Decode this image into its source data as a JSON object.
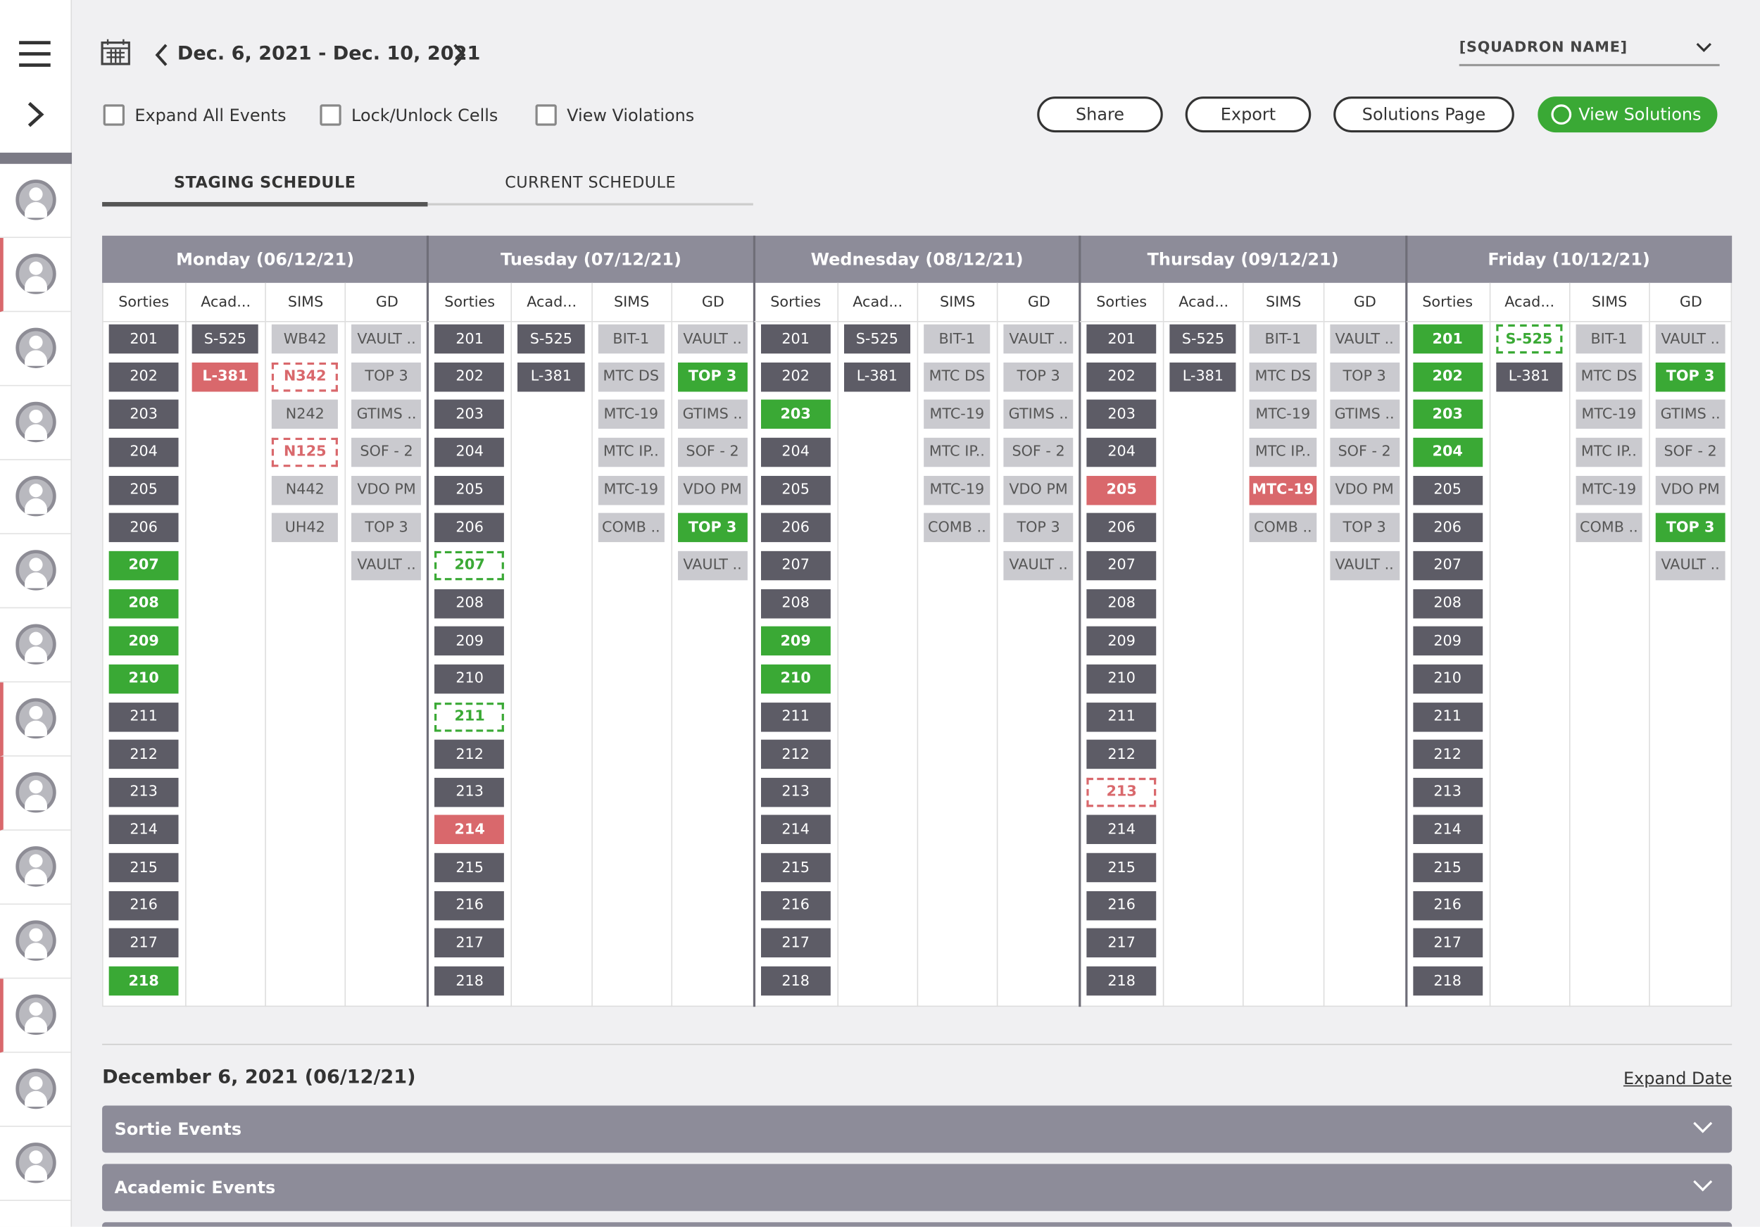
{
  "header": {
    "date_range": "Dec. 6, 2021 - Dec. 10, 2021",
    "squadron": "[SQUADRON NAME]"
  },
  "options": [
    "Expand All Events",
    "Lock/Unlock Cells",
    "View Violations"
  ],
  "buttons": [
    "Share",
    "Export",
    "Solutions Page",
    "View Solutions"
  ],
  "tabs": {
    "labels": [
      "STAGING SCHEDULE",
      "CURRENT SCHEDULE"
    ],
    "active": 0
  },
  "sidebar": {
    "flagged": [
      false,
      true,
      false,
      false,
      false,
      false,
      false,
      true,
      true,
      false,
      false,
      true,
      false,
      false
    ]
  },
  "days": [
    {
      "title": "Monday (06/12/21)",
      "columns": [
        {
          "header": "Sorties",
          "kind": "dark",
          "cells": [
            "201",
            "202",
            "203",
            "204",
            "205",
            "206",
            "207",
            "208",
            "209",
            "210",
            "211",
            "212",
            "213",
            "214",
            "215",
            "216",
            "217",
            "218"
          ],
          "status": [
            null,
            null,
            null,
            null,
            null,
            null,
            "green",
            "green",
            "green",
            "green",
            null,
            null,
            null,
            null,
            null,
            null,
            null,
            "green"
          ]
        },
        {
          "header": "Acad...",
          "kind": "dark",
          "cells": [
            "S-525",
            "L-381"
          ],
          "status": [
            null,
            "red"
          ]
        },
        {
          "header": "SIMS",
          "kind": "light",
          "cells": [
            "WB42",
            "N342",
            "N242",
            "N125",
            "N442",
            "UH42"
          ],
          "status": [
            null,
            "dashed-red",
            null,
            "dashed-red",
            null,
            null
          ]
        },
        {
          "header": "GD",
          "kind": "light",
          "cells": [
            "VAULT ..",
            "TOP 3",
            "GTIMS ..",
            "SOF - 2",
            "VDO PM",
            "TOP 3",
            "VAULT .."
          ],
          "status": [
            null,
            null,
            null,
            null,
            null,
            null,
            null
          ]
        }
      ]
    },
    {
      "title": "Tuesday (07/12/21)",
      "columns": [
        {
          "header": "Sorties",
          "kind": "dark",
          "cells": [
            "201",
            "202",
            "203",
            "204",
            "205",
            "206",
            "207",
            "208",
            "209",
            "210",
            "211",
            "212",
            "213",
            "214",
            "215",
            "216",
            "217",
            "218"
          ],
          "status": [
            null,
            null,
            null,
            null,
            null,
            null,
            "dashed-green",
            null,
            null,
            null,
            "dashed-green",
            null,
            null,
            "red",
            null,
            null,
            null,
            null
          ]
        },
        {
          "header": "Acad...",
          "kind": "dark",
          "cells": [
            "S-525",
            "L-381"
          ],
          "status": [
            null,
            null
          ]
        },
        {
          "header": "SIMS",
          "kind": "light",
          "cells": [
            "BIT-1",
            "MTC DS",
            "MTC-19",
            "MTC IP..",
            "MTC-19",
            "COMB .."
          ],
          "status": [
            null,
            null,
            null,
            null,
            null,
            null
          ]
        },
        {
          "header": "GD",
          "kind": "light",
          "cells": [
            "VAULT ..",
            "TOP 3",
            "GTIMS ..",
            "SOF - 2",
            "VDO PM",
            "TOP 3",
            "VAULT .."
          ],
          "status": [
            null,
            "green",
            null,
            null,
            null,
            "green",
            null
          ]
        }
      ]
    },
    {
      "title": "Wednesday (08/12/21)",
      "columns": [
        {
          "header": "Sorties",
          "kind": "dark",
          "cells": [
            "201",
            "202",
            "203",
            "204",
            "205",
            "206",
            "207",
            "208",
            "209",
            "210",
            "211",
            "212",
            "213",
            "214",
            "215",
            "216",
            "217",
            "218"
          ],
          "status": [
            null,
            null,
            "green",
            null,
            null,
            null,
            null,
            null,
            "green",
            "green",
            null,
            null,
            null,
            null,
            null,
            null,
            null,
            null
          ]
        },
        {
          "header": "Acad...",
          "kind": "dark",
          "cells": [
            "S-525",
            "L-381"
          ],
          "status": [
            null,
            null
          ]
        },
        {
          "header": "SIMS",
          "kind": "light",
          "cells": [
            "BIT-1",
            "MTC DS",
            "MTC-19",
            "MTC IP..",
            "MTC-19",
            "COMB .."
          ],
          "status": [
            null,
            null,
            null,
            null,
            null,
            null
          ]
        },
        {
          "header": "GD",
          "kind": "light",
          "cells": [
            "VAULT ..",
            "TOP 3",
            "GTIMS ..",
            "SOF - 2",
            "VDO PM",
            "TOP 3",
            "VAULT .."
          ],
          "status": [
            null,
            null,
            null,
            null,
            null,
            null,
            null
          ]
        }
      ]
    },
    {
      "title": "Thursday (09/12/21)",
      "columns": [
        {
          "header": "Sorties",
          "kind": "dark",
          "cells": [
            "201",
            "202",
            "203",
            "204",
            "205",
            "206",
            "207",
            "208",
            "209",
            "210",
            "211",
            "212",
            "213",
            "214",
            "215",
            "216",
            "217",
            "218"
          ],
          "status": [
            null,
            null,
            null,
            null,
            "red",
            null,
            null,
            null,
            null,
            null,
            null,
            null,
            "dashed-red",
            null,
            null,
            null,
            null,
            null
          ]
        },
        {
          "header": "Acad...",
          "kind": "dark",
          "cells": [
            "S-525",
            "L-381"
          ],
          "status": [
            null,
            null
          ]
        },
        {
          "header": "SIMS",
          "kind": "light",
          "cells": [
            "BIT-1",
            "MTC DS",
            "MTC-19",
            "MTC IP..",
            "MTC-19",
            "COMB .."
          ],
          "status": [
            null,
            null,
            null,
            null,
            "red",
            null
          ]
        },
        {
          "header": "GD",
          "kind": "light",
          "cells": [
            "VAULT ..",
            "TOP 3",
            "GTIMS ..",
            "SOF - 2",
            "VDO PM",
            "TOP 3",
            "VAULT .."
          ],
          "status": [
            null,
            null,
            null,
            null,
            null,
            null,
            null
          ]
        }
      ]
    },
    {
      "title": "Friday (10/12/21)",
      "columns": [
        {
          "header": "Sorties",
          "kind": "dark",
          "cells": [
            "201",
            "202",
            "203",
            "204",
            "205",
            "206",
            "207",
            "208",
            "209",
            "210",
            "211",
            "212",
            "213",
            "214",
            "215",
            "216",
            "217",
            "218"
          ],
          "status": [
            "green",
            "green",
            "green",
            "green",
            null,
            null,
            null,
            null,
            null,
            null,
            null,
            null,
            null,
            null,
            null,
            null,
            null,
            null
          ]
        },
        {
          "header": "Acad...",
          "kind": "dark",
          "cells": [
            "S-525",
            "L-381"
          ],
          "status": [
            "dashed-green",
            null
          ]
        },
        {
          "header": "SIMS",
          "kind": "light",
          "cells": [
            "BIT-1",
            "MTC DS",
            "MTC-19",
            "MTC IP..",
            "MTC-19",
            "COMB .."
          ],
          "status": [
            null,
            null,
            null,
            null,
            null,
            null
          ]
        },
        {
          "header": "GD",
          "kind": "light",
          "cells": [
            "VAULT ..",
            "TOP 3",
            "GTIMS ..",
            "SOF - 2",
            "VDO PM",
            "TOP 3",
            "VAULT .."
          ],
          "status": [
            null,
            "green",
            null,
            null,
            null,
            "green",
            null
          ]
        }
      ]
    }
  ],
  "detail": {
    "date": "December 6, 2021 (06/12/21)",
    "expand": "Expand Date",
    "sections": [
      "Sortie Events",
      "Academic Events"
    ]
  }
}
